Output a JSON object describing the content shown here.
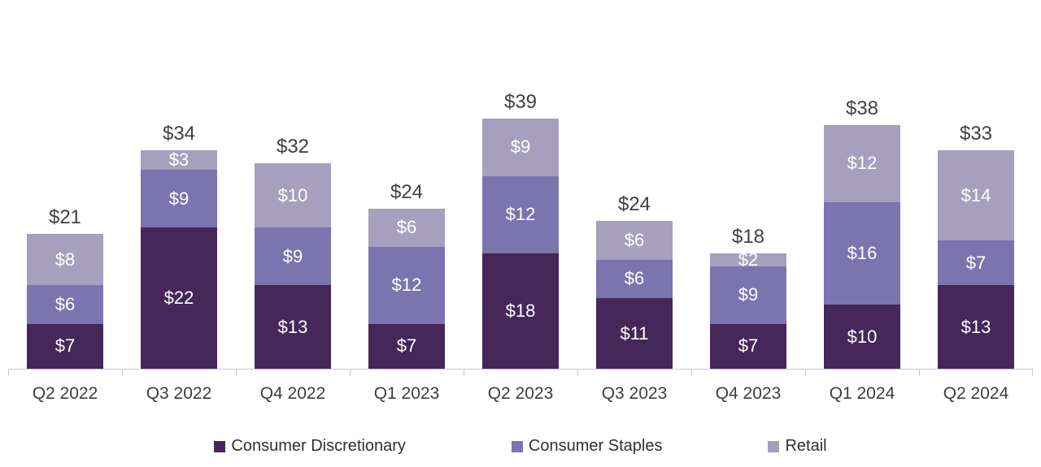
{
  "chart_data": {
    "type": "bar",
    "stacked": true,
    "title": "",
    "xlabel": "",
    "ylabel": "",
    "value_prefix": "$",
    "grid": false,
    "legend_position": "bottom",
    "ylim": [
      0,
      40
    ],
    "categories": [
      "Q2 2022",
      "Q3 2022",
      "Q4 2022",
      "Q1 2023",
      "Q2 2023",
      "Q3 2023",
      "Q4 2023",
      "Q1 2024",
      "Q2 2024"
    ],
    "series": [
      {
        "name": "Consumer Discretionary",
        "color": "#45275a",
        "values": [
          7,
          22,
          13,
          7,
          18,
          11,
          7,
          10,
          13
        ],
        "labels": [
          "$7",
          "$22",
          "$13",
          "$7",
          "$18",
          "$11",
          "$7",
          "$10",
          "$13"
        ]
      },
      {
        "name": "Consumer Staples",
        "color": "#7b74af",
        "values": [
          6,
          9,
          9,
          12,
          12,
          6,
          9,
          16,
          7
        ],
        "labels": [
          "$6",
          "$9",
          "$9",
          "$12",
          "$12",
          "$6",
          "$9",
          "$16",
          "$7"
        ]
      },
      {
        "name": "Retail",
        "color": "#a69fbe",
        "values": [
          8,
          3,
          10,
          6,
          9,
          6,
          2,
          12,
          14
        ],
        "labels": [
          "$8",
          "$3",
          "$10",
          "$6",
          "$9",
          "$6",
          "$2",
          "$12",
          "$14"
        ]
      }
    ],
    "totals": [
      21,
      34,
      32,
      24,
      39,
      24,
      18,
      38,
      33
    ],
    "total_labels": [
      "$21",
      "$34",
      "$32",
      "$24",
      "$39",
      "$24",
      "$18",
      "$38",
      "$33"
    ]
  },
  "legend": {
    "items": [
      {
        "label": "Consumer Discretionary",
        "color": "#45275a"
      },
      {
        "label": "Consumer Staples",
        "color": "#7b74af"
      },
      {
        "label": "Retail",
        "color": "#a69fbe"
      }
    ]
  },
  "colors": {
    "axis_line": "#c9c9c9",
    "total_label_text": "#404040",
    "axis_label_text": "#3d3d3d",
    "segment_label_text": "#ffffff",
    "background": "#ffffff"
  }
}
